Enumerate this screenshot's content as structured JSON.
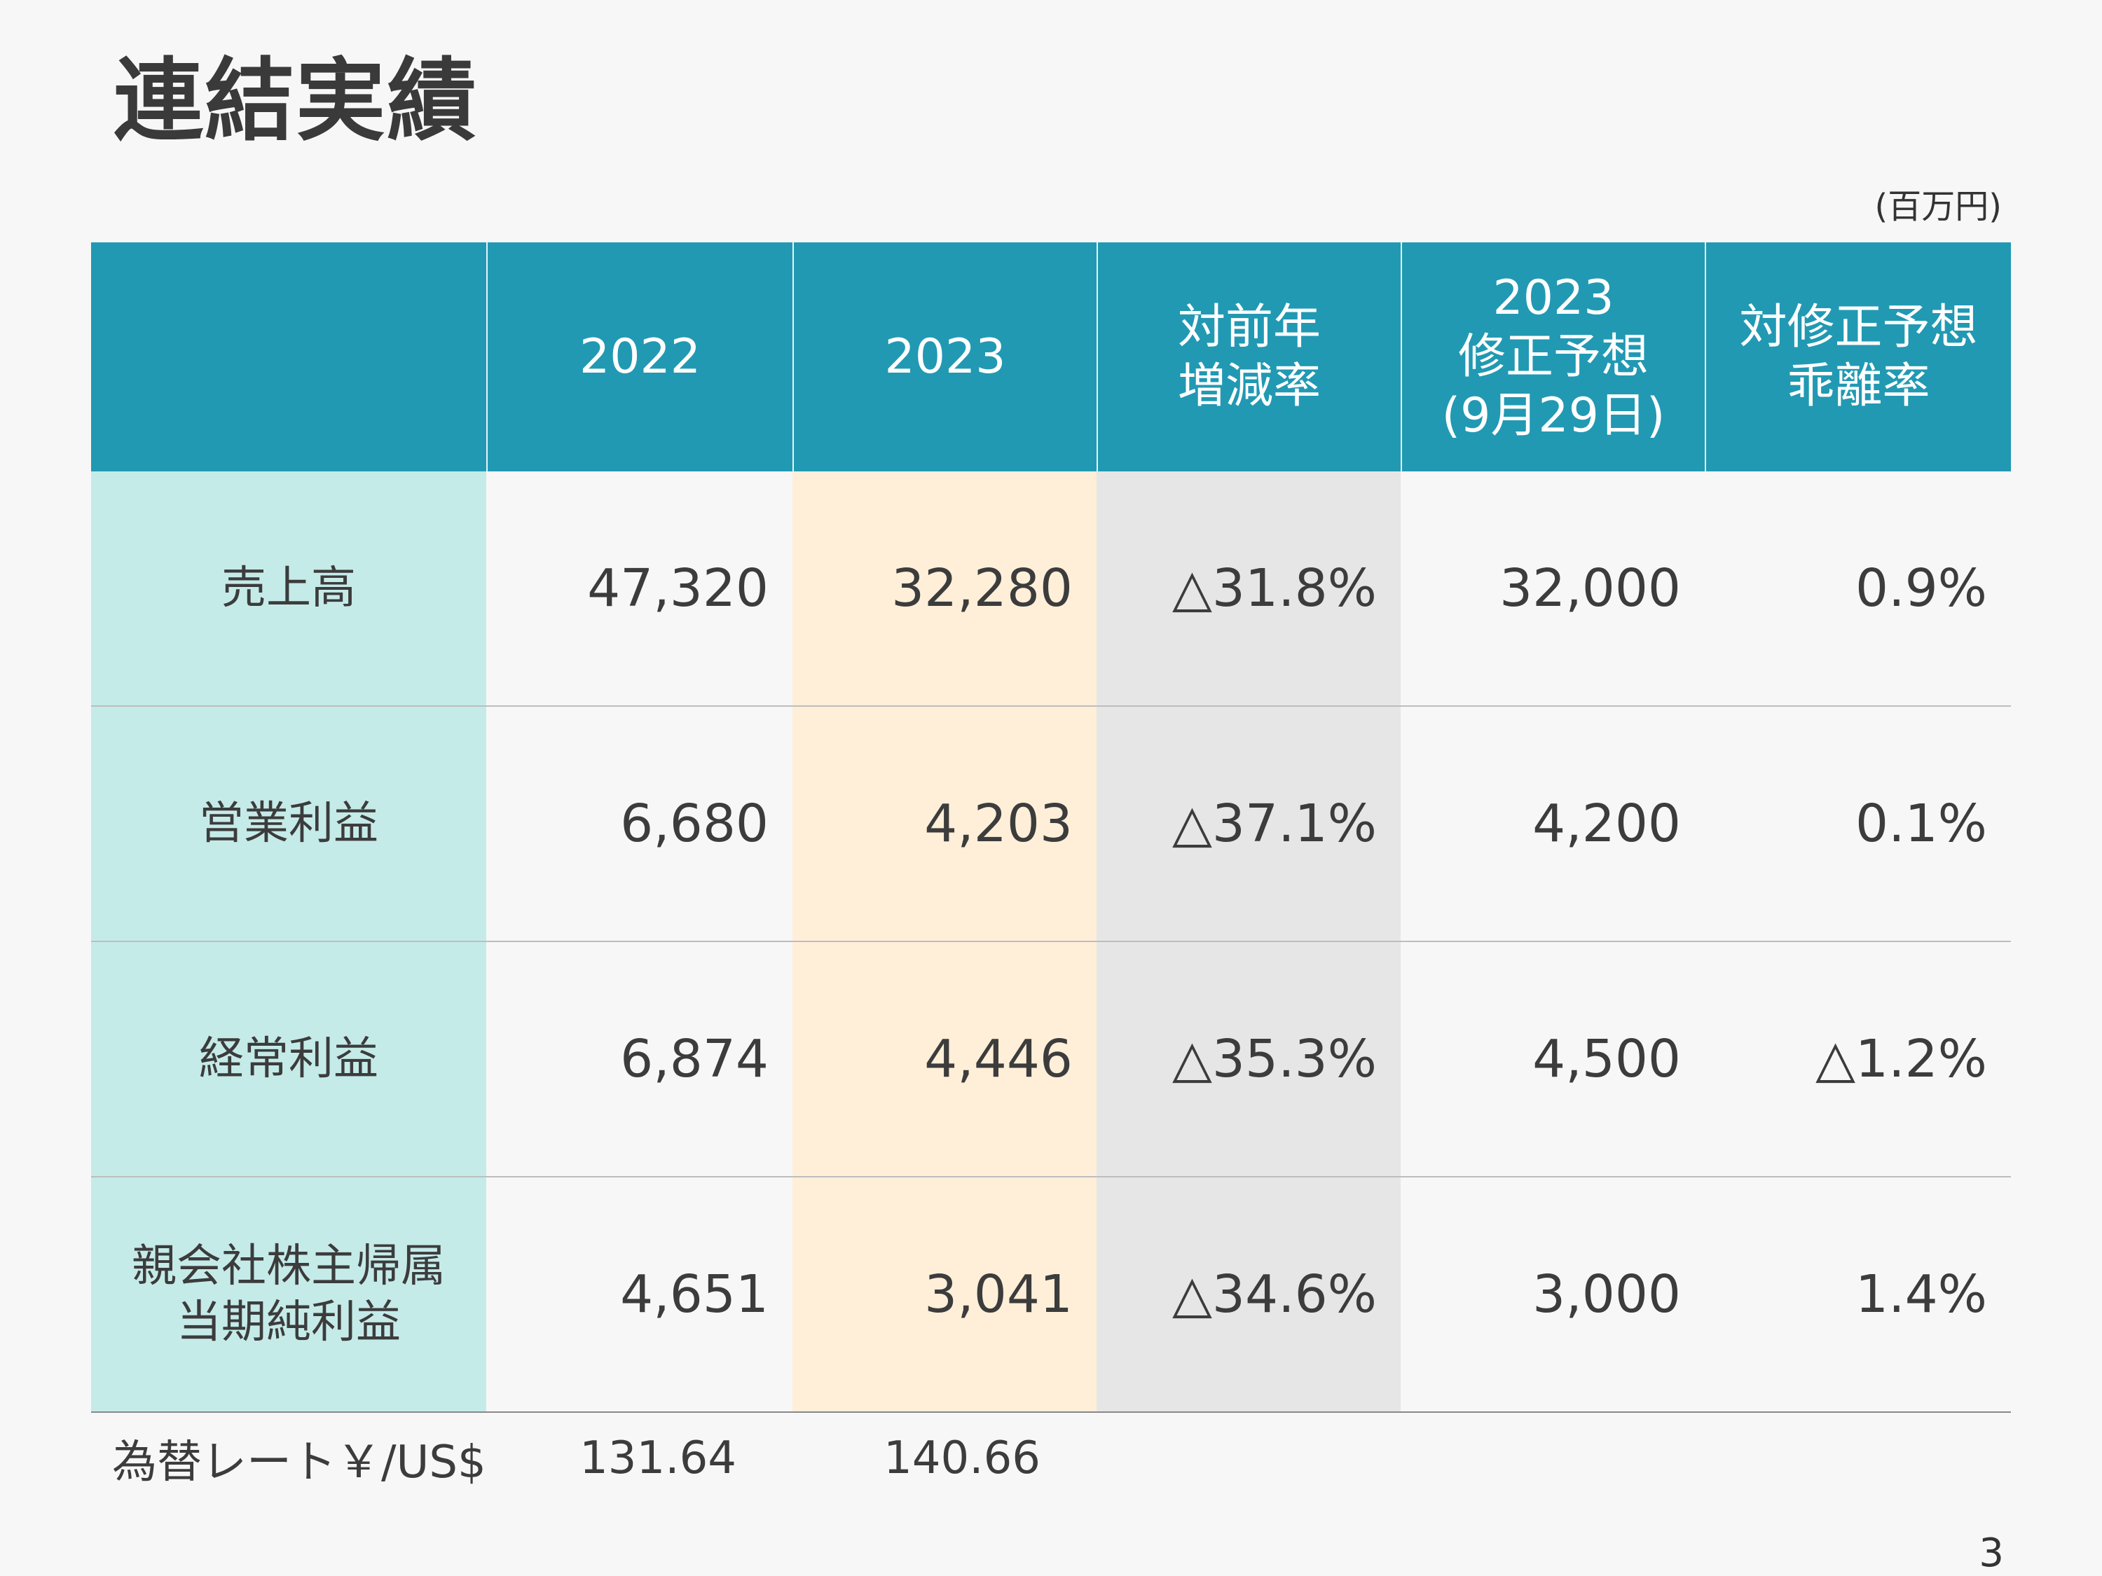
{
  "title": "連結実績",
  "unit": "(百万円)",
  "header": [
    "",
    "2022",
    "2023",
    "対前年\n増減率",
    "2023\n修正予想\n(9月29日)",
    "対修正予想\n乖離率"
  ],
  "rows": [
    {
      "label": "売上高",
      "v2022": "47,320",
      "v2023": "32,280",
      "yoy": "△31.8%",
      "forecast": "32,000",
      "deviation": "0.9%"
    },
    {
      "label": "営業利益",
      "v2022": "6,680",
      "v2023": "4,203",
      "yoy": "△37.1%",
      "forecast": "4,200",
      "deviation": "0.1%"
    },
    {
      "label": "経常利益",
      "v2022": "6,874",
      "v2023": "4,446",
      "yoy": "△35.3%",
      "forecast": "4,500",
      "deviation": "△1.2%"
    },
    {
      "label": "親会社株主帰属\n当期純利益",
      "v2022": "4,651",
      "v2023": "3,041",
      "yoy": "△34.6%",
      "forecast": "3,000",
      "deviation": "1.4%"
    }
  ],
  "fx": {
    "label": "為替レート￥/US$",
    "v2022": "131.64",
    "v2023": "140.66"
  },
  "page_number": "3",
  "colors": {
    "header": "#2199b3",
    "label_col": "#c5ebe9",
    "col_2023": "#ffefd9",
    "col_yoy": "#e6e6e6"
  }
}
